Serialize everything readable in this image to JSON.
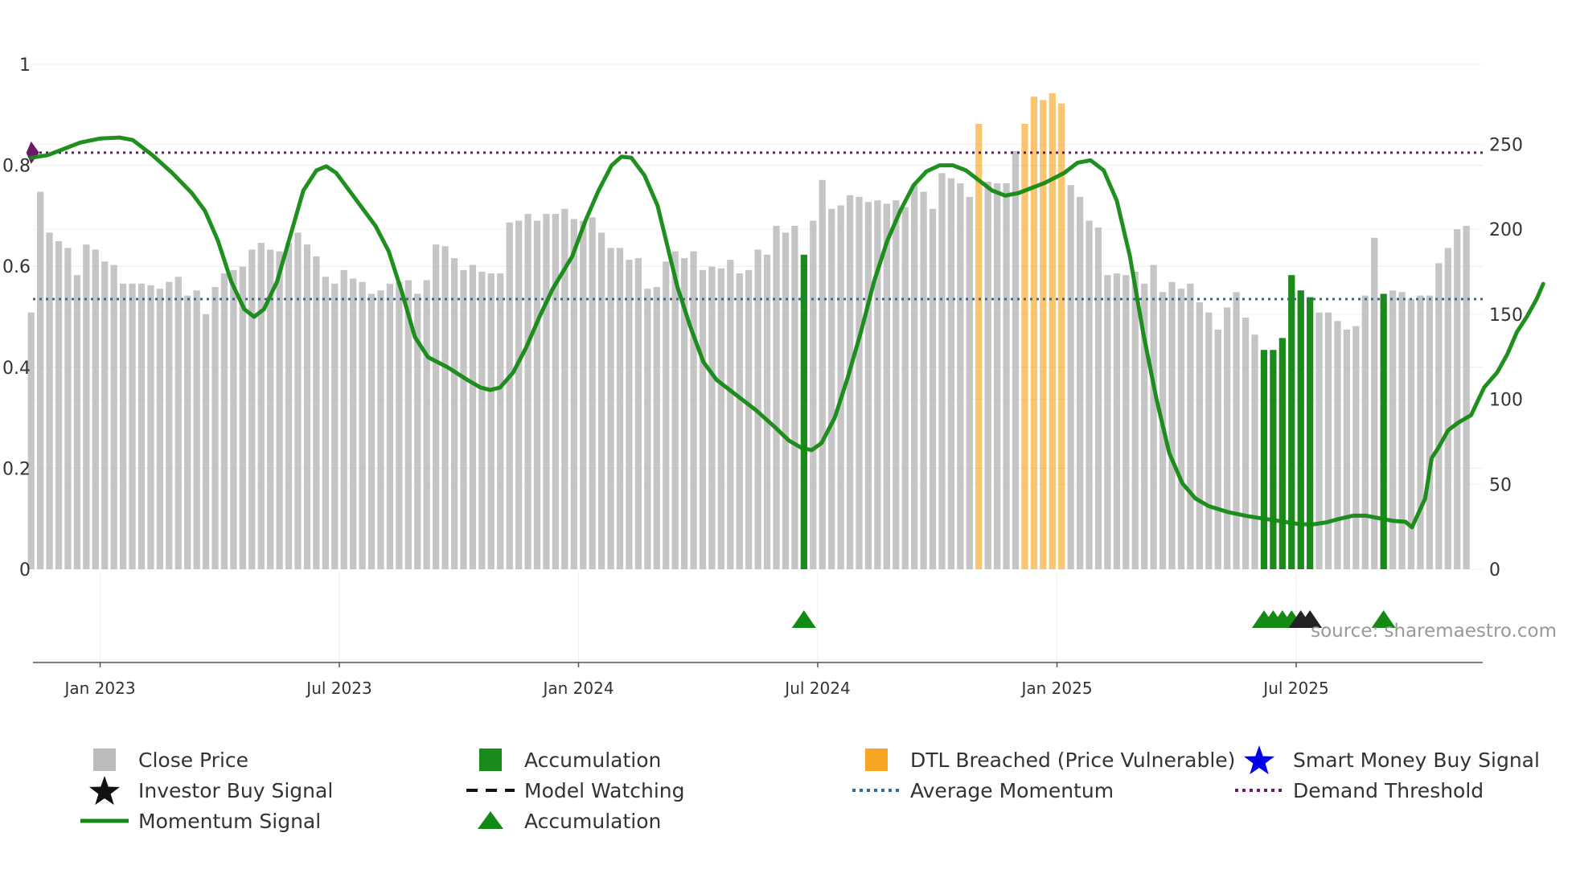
{
  "chart_data": {
    "type": "bar+line",
    "source": "source: sharemaestro.com",
    "x_dates": [
      "Jan 2023",
      "Jul 2023",
      "Jan 2024",
      "Jul 2024",
      "Jan 2025",
      "Jul 2025"
    ],
    "left_axis": {
      "ticks": [
        "0",
        "0.2",
        "0.4",
        "0.6",
        "0.8",
        "1"
      ],
      "ylim": [
        0,
        1
      ]
    },
    "right_axis": {
      "ticks": [
        "0",
        "50",
        "100",
        "150",
        "200",
        "250"
      ],
      "ylim": [
        0,
        297
      ]
    },
    "weeks": 159,
    "start_week": -7.5,
    "close_prices": [
      151,
      222,
      198,
      193,
      189,
      173,
      191,
      188,
      181,
      179,
      168,
      168,
      168,
      167,
      165,
      169,
      172,
      161,
      164,
      150,
      166,
      174,
      176,
      178,
      188,
      192,
      188,
      187,
      192,
      198,
      191,
      184,
      172,
      168,
      176,
      171,
      169,
      162,
      164,
      168,
      169,
      170,
      162,
      170,
      191,
      190,
      183,
      176,
      179,
      175,
      174,
      174,
      204,
      205,
      209,
      205,
      209,
      209,
      212,
      206,
      205,
      207,
      198,
      189,
      189,
      182,
      183,
      165,
      166,
      181,
      187,
      183,
      187,
      176,
      178,
      177,
      182,
      174,
      176,
      188,
      185,
      202,
      198,
      202,
      198,
      205,
      229,
      212,
      214,
      220,
      219,
      216,
      217,
      215,
      217,
      213,
      226,
      222,
      212,
      233,
      230,
      227,
      219,
      238,
      228,
      227,
      227,
      246,
      232,
      243,
      240,
      236,
      236,
      226,
      219,
      205,
      201,
      173,
      174,
      173,
      175,
      168,
      179,
      163,
      169,
      165,
      168,
      157,
      151,
      141,
      154,
      163,
      148,
      138,
      131,
      129,
      138,
      174,
      165,
      161,
      151,
      151,
      146,
      141,
      143,
      161,
      195,
      168,
      164,
      163,
      159,
      161,
      161,
      180,
      189,
      200,
      202
    ],
    "accumulation_bars": [
      {
        "week": 84,
        "value": 185
      },
      {
        "week": 134,
        "value": 129
      },
      {
        "week": 135,
        "value": 129
      },
      {
        "week": 136,
        "value": 136
      },
      {
        "week": 137,
        "value": 173
      },
      {
        "week": 138,
        "value": 164
      },
      {
        "week": 139,
        "value": 160
      },
      {
        "week": 147,
        "value": 162
      }
    ],
    "dtl_breached_bars": [
      {
        "week": 103,
        "value": 262
      },
      {
        "week": 108,
        "value": 262
      },
      {
        "week": 109,
        "value": 278
      },
      {
        "week": 110,
        "value": 276
      },
      {
        "week": 111,
        "value": 280
      },
      {
        "week": 112,
        "value": 274
      }
    ],
    "momentum_signal": [
      [
        -7.5,
        0.815
      ],
      [
        -5,
        0.82
      ],
      [
        -3,
        0.83
      ],
      [
        0,
        0.845
      ],
      [
        3,
        0.853
      ],
      [
        6,
        0.855
      ],
      [
        8,
        0.85
      ],
      [
        11,
        0.82
      ],
      [
        14,
        0.785
      ],
      [
        17,
        0.745
      ],
      [
        19,
        0.71
      ],
      [
        21,
        0.65
      ],
      [
        23,
        0.57
      ],
      [
        25,
        0.515
      ],
      [
        26.5,
        0.5
      ],
      [
        28,
        0.515
      ],
      [
        30,
        0.57
      ],
      [
        32,
        0.66
      ],
      [
        34,
        0.75
      ],
      [
        36,
        0.79
      ],
      [
        37.5,
        0.798
      ],
      [
        39,
        0.785
      ],
      [
        41,
        0.75
      ],
      [
        43,
        0.715
      ],
      [
        45,
        0.68
      ],
      [
        47,
        0.63
      ],
      [
        49,
        0.55
      ],
      [
        51,
        0.46
      ],
      [
        53,
        0.42
      ],
      [
        56,
        0.4
      ],
      [
        59,
        0.375
      ],
      [
        61,
        0.36
      ],
      [
        62.5,
        0.355
      ],
      [
        64,
        0.36
      ],
      [
        66,
        0.39
      ],
      [
        68,
        0.44
      ],
      [
        70,
        0.5
      ],
      [
        72,
        0.555
      ],
      [
        75,
        0.62
      ],
      [
        77,
        0.69
      ],
      [
        79,
        0.75
      ],
      [
        81,
        0.8
      ],
      [
        82.5,
        0.817
      ],
      [
        84,
        0.815
      ],
      [
        86,
        0.78
      ],
      [
        88,
        0.72
      ],
      [
        89.5,
        0.64
      ],
      [
        91,
        0.56
      ],
      [
        93,
        0.48
      ],
      [
        95,
        0.41
      ],
      [
        97,
        0.375
      ],
      [
        100,
        0.345
      ],
      [
        103,
        0.315
      ],
      [
        106,
        0.28
      ],
      [
        108,
        0.255
      ],
      [
        110,
        0.24
      ],
      [
        111.5,
        0.236
      ],
      [
        113,
        0.25
      ],
      [
        115,
        0.3
      ],
      [
        117,
        0.38
      ],
      [
        119,
        0.47
      ],
      [
        121,
        0.57
      ],
      [
        123,
        0.65
      ],
      [
        125,
        0.71
      ],
      [
        127,
        0.76
      ],
      [
        129,
        0.788
      ],
      [
        131,
        0.8
      ],
      [
        133,
        0.8
      ],
      [
        135,
        0.79
      ],
      [
        137,
        0.77
      ],
      [
        139,
        0.75
      ],
      [
        141,
        0.74
      ],
      [
        143,
        0.745
      ],
      [
        145,
        0.755
      ],
      [
        147,
        0.765
      ],
      [
        150,
        0.785
      ],
      [
        152,
        0.805
      ],
      [
        154,
        0.81
      ],
      [
        156,
        0.79
      ],
      [
        158,
        0.73
      ],
      [
        160,
        0.62
      ],
      [
        162,
        0.47
      ],
      [
        164,
        0.34
      ],
      [
        166,
        0.23
      ],
      [
        168,
        0.17
      ],
      [
        170,
        0.14
      ],
      [
        172,
        0.125
      ],
      [
        175,
        0.113
      ],
      [
        178,
        0.105
      ],
      [
        181,
        0.099
      ],
      [
        184,
        0.093
      ],
      [
        186,
        0.089
      ],
      [
        188,
        0.089
      ],
      [
        190,
        0.093
      ],
      [
        192,
        0.1
      ],
      [
        194,
        0.106
      ],
      [
        196,
        0.106
      ],
      [
        198,
        0.101
      ],
      [
        200,
        0.096
      ],
      [
        202,
        0.094
      ],
      [
        203,
        0.083
      ],
      [
        205,
        0.14
      ],
      [
        206,
        0.22
      ],
      [
        207,
        0.24
      ],
      [
        208.5,
        0.275
      ],
      [
        210,
        0.29
      ],
      [
        212,
        0.305
      ],
      [
        214,
        0.36
      ],
      [
        216,
        0.39
      ],
      [
        217.5,
        0.425
      ],
      [
        219,
        0.47
      ],
      [
        220.5,
        0.5
      ],
      [
        222,
        0.535
      ],
      [
        223,
        0.565
      ]
    ],
    "momentum_x_scale": 0.7130044843049327,
    "average_momentum": 0.535,
    "demand_threshold": 0.825,
    "markers": {
      "accumulation": [
        84,
        134,
        135,
        136,
        137,
        147
      ],
      "model_watching": [
        138,
        139
      ],
      "demand_start": -7.5
    },
    "legend": [
      {
        "label": "Close Price",
        "swatch": "square",
        "color": "#bbbbbb"
      },
      {
        "label": "Accumulation",
        "swatch": "square",
        "color": "#1a8a1a"
      },
      {
        "label": "DTL Breached (Price Vulnerable)",
        "swatch": "square",
        "color": "#f6a623"
      },
      {
        "label": "Smart Money Buy Signal",
        "swatch": "star",
        "color": "#0000ee"
      },
      {
        "label": "Investor Buy Signal",
        "swatch": "star",
        "color": "#111111"
      },
      {
        "label": "Model Watching",
        "swatch": "dash",
        "color": "#111111"
      },
      {
        "label": "Average Momentum",
        "swatch": "dot",
        "color": "#2e6e9e"
      },
      {
        "label": "Demand Threshold",
        "swatch": "dot",
        "color": "#6a1a6a"
      },
      {
        "label": "Momentum Signal",
        "swatch": "line",
        "color": "#138a13"
      },
      {
        "label": "Accumulation",
        "swatch": "triangle",
        "color": "#138a13"
      }
    ],
    "colors": {
      "close": "#bbbbbb",
      "accumulation": "#1a8a1a",
      "dtl": "#f6a623",
      "momentum": "#138a13",
      "avg": "#2e6e9e",
      "demand": "#6a1a6a"
    }
  }
}
